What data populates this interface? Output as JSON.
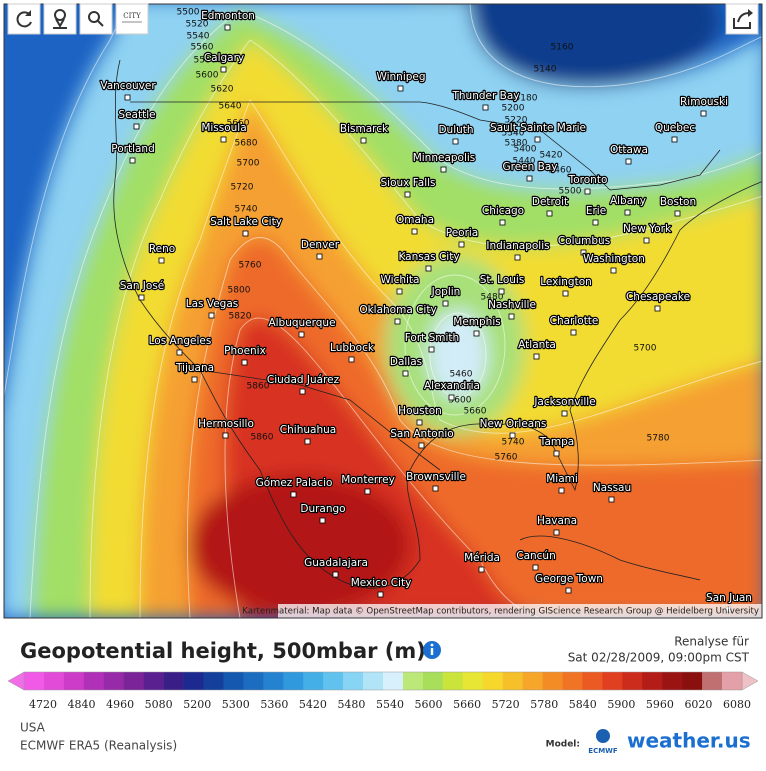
{
  "toolbar": {
    "city_button": "CITY"
  },
  "map": {
    "cities": [
      "Edmonton",
      "Calgary",
      "Vancouver",
      "Seattle",
      "Portland",
      "Missoula",
      "Winnipeg",
      "Thunder Bay",
      "Rimouski",
      "Sault Sainte Marie",
      "Duluth",
      "Bismarck",
      "Quebec",
      "Ottawa",
      "Minneapolis",
      "Green Bay",
      "Sioux Falls",
      "Toronto",
      "Detroit",
      "Albany",
      "Boston",
      "Erie",
      "Chicago",
      "Omaha",
      "Salt Lake City",
      "Peoria",
      "New York",
      "Indianapolis",
      "Columbus",
      "Denver",
      "Reno",
      "Kansas City",
      "Washington",
      "San José",
      "Wichita",
      "St. Louis",
      "Lexington",
      "Joplin",
      "Chesapeake",
      "Nashville",
      "Las Vegas",
      "Oklahoma City",
      "Memphis",
      "Charlotte",
      "Albuquerque",
      "Fort Smith",
      "Los Angeles",
      "Atlanta",
      "Lubbock",
      "Phoenix",
      "Dallas",
      "Tijuana",
      "Ciudad Juárez",
      "Alexandria",
      "Jacksonville",
      "Houston",
      "Hermosillo",
      "New Orleans",
      "San Antonio",
      "Chihuahua",
      "Tampa",
      "Brownsville",
      "Miami",
      "Monterrey",
      "Nassau",
      "Gómez Palacio",
      "Durango",
      "Havana",
      "Cancún",
      "Mérida",
      "Guadalajara",
      "George Town",
      "Mexico City",
      "San Juan"
    ],
    "contour_labels": [
      5500,
      5520,
      5540,
      5560,
      5580,
      5600,
      5620,
      5640,
      5660,
      5680,
      5700,
      5720,
      5740,
      5760,
      5800,
      5820,
      5860,
      5860,
      5140,
      5160,
      5180,
      5200,
      5220,
      5340,
      5380,
      5400,
      5420,
      5440,
      5460,
      5500,
      5460,
      5600,
      5660,
      5740,
      5760,
      5780,
      5700,
      5480
    ],
    "attribution": "Kartenmaterial: Map data © OpenStreetMap contributors, rendering GIScience Research Group @ Heidelberg University"
  },
  "legend": {
    "colors": [
      "#f05ae6",
      "#e24ad8",
      "#cc3cc8",
      "#b030b8",
      "#962aa8",
      "#7a2498",
      "#5a2090",
      "#3a1e88",
      "#1c2a90",
      "#14409c",
      "#1458b0",
      "#1c6cc0",
      "#2482d0",
      "#3098dc",
      "#44aee6",
      "#62c2ee",
      "#88d4f4",
      "#b2e4f8",
      "#d8f0fc",
      "#bce87a",
      "#a8de5a",
      "#cae43c",
      "#e8e634",
      "#f6d82c",
      "#f6c02a",
      "#f6a628",
      "#f48c26",
      "#f07424",
      "#ea5a22",
      "#e04020",
      "#cc2c1c",
      "#b41c18",
      "#9a1414",
      "#8a1010",
      "#c07070",
      "#e4a0a8"
    ],
    "ticks": [
      4720,
      4840,
      4960,
      5080,
      5200,
      5300,
      5360,
      5420,
      5480,
      5540,
      5600,
      5660,
      5720,
      5780,
      5840,
      5900,
      5960,
      6020,
      6080
    ]
  },
  "footer": {
    "title": "Geopotential height, 500mbar (m)",
    "analysis_label": "Renalyse für",
    "timestamp": "Sat 02/28/2009, 09:00pm CST",
    "region": "USA",
    "model": "ECMWF ERA5 (Reanalysis)",
    "model_label": "Model:",
    "model_logo": "ECMWF",
    "brand": "weather.us"
  }
}
